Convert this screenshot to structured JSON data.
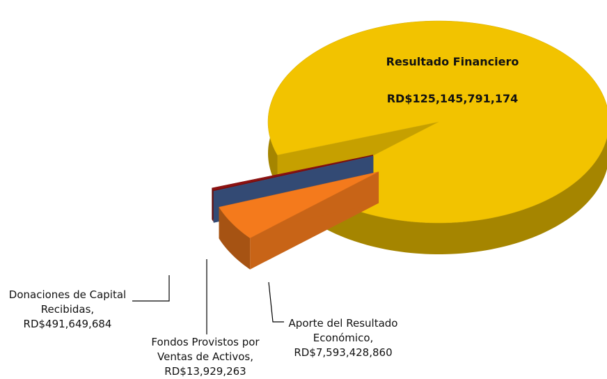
{
  "chart_data": {
    "type": "pie3d",
    "categories": [
      "Resultado Financiero",
      "Donaciones de Capital Recibidas,",
      "Fondos Provistos por Ventas de Activos,",
      "Aporte del Resultado Económico,"
    ],
    "values": [
      125145791174,
      491649684,
      13929263,
      7593428860
    ],
    "value_labels": [
      "RD$125,145,791,174",
      "RD$491,649,684",
      "RD$13,929,263",
      "RD$7,593,428,860"
    ],
    "colors": [
      "#f2c300",
      "#8e1212",
      "#3e5a8e",
      "#f47a1c"
    ],
    "exploded": [
      false,
      true,
      true,
      true
    ]
  }
}
